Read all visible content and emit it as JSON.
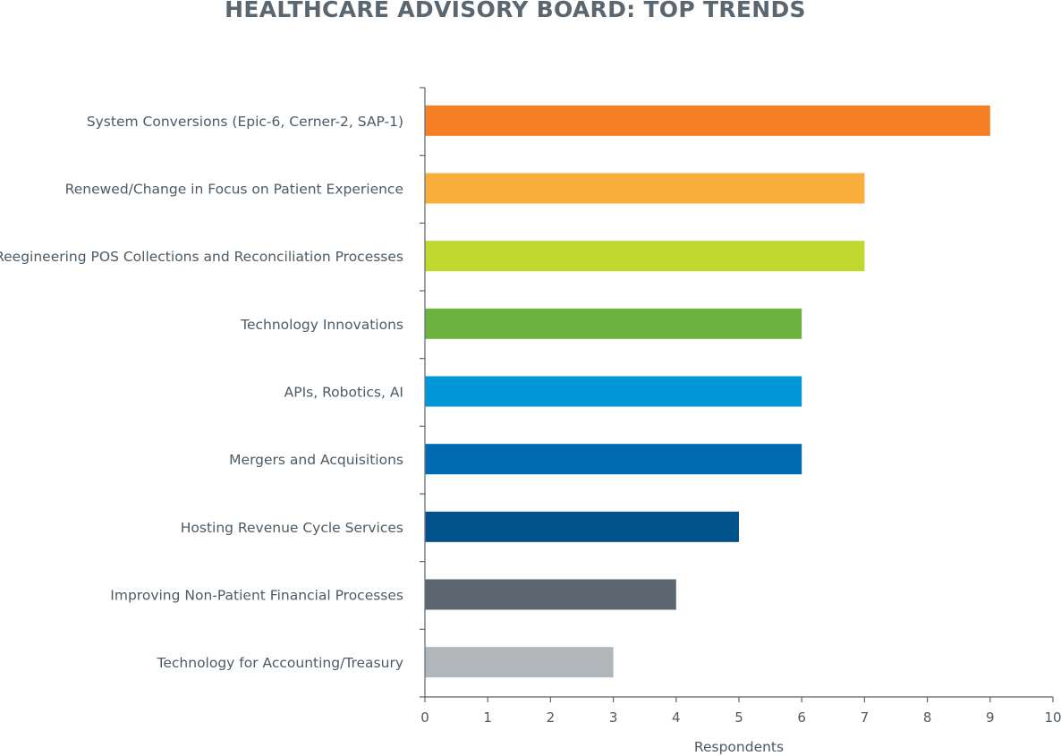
{
  "chart_data": {
    "type": "bar",
    "orientation": "horizontal",
    "title": "HEALTHCARE ADVISORY BOARD: TOP TRENDS",
    "xlabel": "Respondents",
    "ylabel": "",
    "xlim": [
      0,
      10
    ],
    "xticks": [
      "0",
      "1",
      "2",
      "3",
      "4",
      "5",
      "6",
      "7",
      "8",
      "9",
      "10"
    ],
    "grid": false,
    "legend": "none",
    "categories": [
      "System Conversions (Epic-6, Cerner-2, SAP-1)",
      "Renewed/Change in Focus on Patient Experience",
      "Reegineering POS Collections and Reconciliation Processes",
      "Technology Innovations",
      "APIs, Robotics, AI",
      "Mergers and Acquisitions",
      "Hosting Revenue Cycle Services",
      "Improving Non-Patient Financial Processes",
      "Technology for Accounting/Treasury"
    ],
    "values": [
      9,
      7,
      7,
      6,
      6,
      6,
      5,
      4,
      3
    ],
    "colors": [
      "#f47f24",
      "#f9ae3c",
      "#c1d82f",
      "#6db33f",
      "#0097d6",
      "#006bb0",
      "#00538a",
      "#5b6670",
      "#b0b6b9"
    ]
  }
}
